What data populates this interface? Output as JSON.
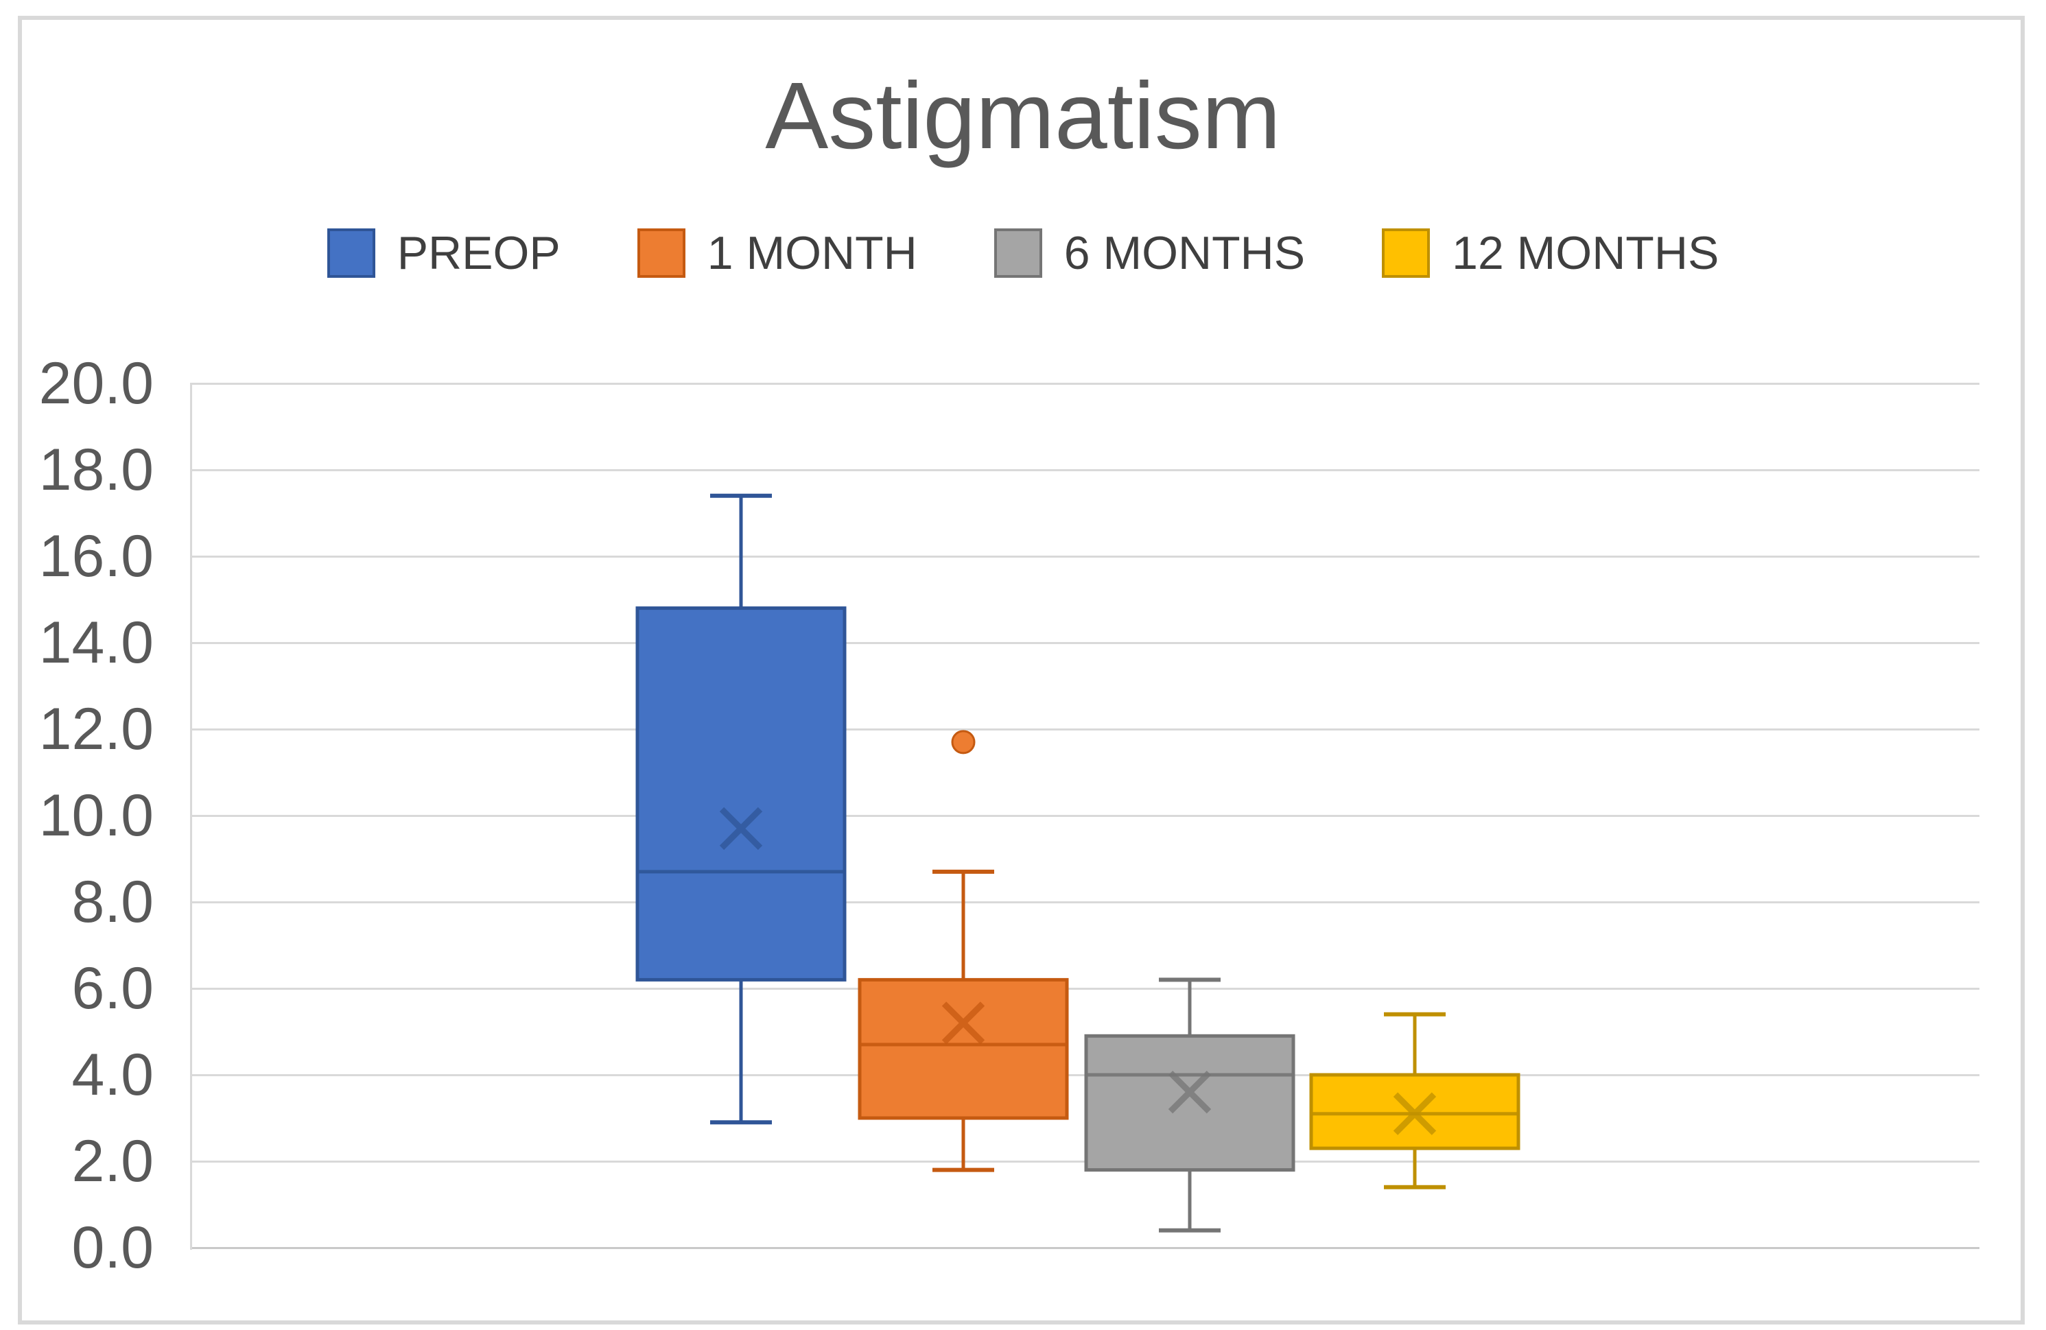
{
  "chart_data": {
    "type": "box",
    "title": "Astigmatism",
    "legend_position": "top",
    "grid": true,
    "y_axis": {
      "min": 0,
      "max": 20,
      "step": 2,
      "tick_labels": [
        "20.0",
        "18.0",
        "16.0",
        "14.0",
        "12.0",
        "10.0",
        "8.0",
        "6.0",
        "4.0",
        "2.0",
        "0.0"
      ]
    },
    "series": [
      {
        "label": "PREOP",
        "fill": "#4472C4",
        "stroke": "#2F5597",
        "min": 2.9,
        "q1": 6.2,
        "median": 8.7,
        "q3": 14.8,
        "max": 17.4,
        "mean": 9.7,
        "outliers": []
      },
      {
        "label": "1 MONTH",
        "fill": "#ED7D31",
        "stroke": "#C55A11",
        "min": 1.8,
        "q1": 3.0,
        "median": 4.7,
        "q3": 6.2,
        "max": 8.7,
        "mean": 5.2,
        "outliers": [
          11.7
        ]
      },
      {
        "label": "6 MONTHS",
        "fill": "#A5A5A5",
        "stroke": "#757575",
        "min": 0.4,
        "q1": 1.8,
        "median": 4.0,
        "q3": 4.9,
        "max": 6.2,
        "mean": 3.6,
        "outliers": []
      },
      {
        "label": "12 MONTHS",
        "fill": "#FFC000",
        "stroke": "#BF9000",
        "min": 1.4,
        "q1": 2.3,
        "median": 3.1,
        "q3": 4.0,
        "max": 5.4,
        "mean": 3.1,
        "outliers": []
      }
    ]
  }
}
